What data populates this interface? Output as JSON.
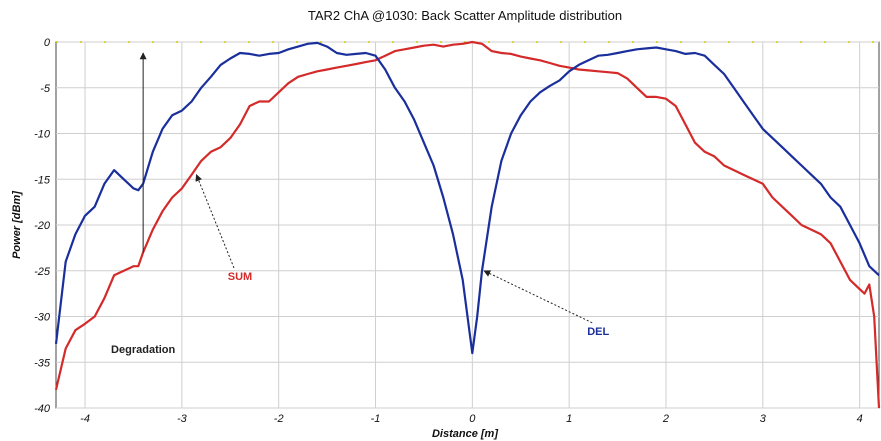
{
  "chart_data": {
    "type": "line",
    "title": "TAR2 ChA @1030: Back Scatter Amplitude distribution",
    "xlabel": "Distance [m]",
    "ylabel": "Power [dBm]",
    "xlim": [
      -4.3,
      4.2
    ],
    "ylim": [
      -40,
      0
    ],
    "xticks": [
      -4,
      -3,
      -2,
      -1,
      0,
      1,
      2,
      3,
      4
    ],
    "yticks": [
      0,
      -5,
      -10,
      -15,
      -20,
      -25,
      -30,
      -35,
      -40
    ],
    "grid": true,
    "colors": {
      "SUM": "#d42a2a",
      "DEL": "#1a2f9c",
      "arrow": "#222222",
      "dashed": "#c8c800"
    },
    "series": [
      {
        "name": "SUM",
        "x": [
          -4.3,
          -4.2,
          -4.1,
          -4.0,
          -3.9,
          -3.8,
          -3.7,
          -3.6,
          -3.5,
          -3.45,
          -3.4,
          -3.3,
          -3.2,
          -3.1,
          -3.0,
          -2.9,
          -2.8,
          -2.7,
          -2.6,
          -2.5,
          -2.4,
          -2.3,
          -2.2,
          -2.1,
          -2.0,
          -1.9,
          -1.8,
          -1.7,
          -1.6,
          -1.5,
          -1.4,
          -1.3,
          -1.2,
          -1.1,
          -1.0,
          -0.9,
          -0.8,
          -0.7,
          -0.6,
          -0.5,
          -0.4,
          -0.3,
          -0.2,
          -0.1,
          0.0,
          0.1,
          0.2,
          0.3,
          0.4,
          0.5,
          0.6,
          0.7,
          0.8,
          0.9,
          1.0,
          1.1,
          1.2,
          1.3,
          1.4,
          1.5,
          1.6,
          1.7,
          1.8,
          1.9,
          2.0,
          2.1,
          2.2,
          2.3,
          2.4,
          2.5,
          2.6,
          2.7,
          2.8,
          2.9,
          3.0,
          3.1,
          3.2,
          3.3,
          3.4,
          3.5,
          3.6,
          3.7,
          3.8,
          3.9,
          4.0,
          4.05,
          4.1,
          4.15,
          4.2
        ],
        "y": [
          -38,
          -33.5,
          -31.5,
          -30.8,
          -30,
          -28,
          -25.5,
          -25,
          -24.5,
          -24.5,
          -23,
          -20.5,
          -18.5,
          -17,
          -16,
          -14.5,
          -13,
          -12,
          -11.5,
          -10.5,
          -9,
          -7,
          -6.5,
          -6.5,
          -5.5,
          -4.5,
          -3.8,
          -3.5,
          -3.2,
          -3,
          -2.8,
          -2.6,
          -2.4,
          -2.2,
          -2,
          -1.5,
          -1,
          -0.8,
          -0.6,
          -0.4,
          -0.3,
          -0.5,
          -0.3,
          -0.2,
          0,
          -0.2,
          -1,
          -1.2,
          -1.3,
          -1.6,
          -1.8,
          -2,
          -2.3,
          -2.6,
          -2.8,
          -3,
          -3.1,
          -3.2,
          -3.3,
          -3.4,
          -4,
          -5,
          -6,
          -6,
          -6.2,
          -7,
          -9,
          -11,
          -12,
          -12.5,
          -13.5,
          -14,
          -14.5,
          -15,
          -15.5,
          -17,
          -18,
          -19,
          -20,
          -20.5,
          -21,
          -22,
          -24,
          -26,
          -27,
          -27.5,
          -26.5,
          -30,
          -40
        ]
      },
      {
        "name": "DEL",
        "x": [
          -4.3,
          -4.2,
          -4.1,
          -4.0,
          -3.9,
          -3.8,
          -3.7,
          -3.6,
          -3.5,
          -3.45,
          -3.4,
          -3.3,
          -3.2,
          -3.1,
          -3.0,
          -2.9,
          -2.8,
          -2.7,
          -2.6,
          -2.5,
          -2.4,
          -2.3,
          -2.2,
          -2.1,
          -2.0,
          -1.9,
          -1.8,
          -1.7,
          -1.6,
          -1.5,
          -1.4,
          -1.3,
          -1.2,
          -1.1,
          -1.0,
          -0.9,
          -0.8,
          -0.7,
          -0.6,
          -0.5,
          -0.4,
          -0.3,
          -0.2,
          -0.1,
          -0.05,
          0.0,
          0.05,
          0.1,
          0.2,
          0.3,
          0.4,
          0.5,
          0.6,
          0.7,
          0.8,
          0.9,
          1.0,
          1.1,
          1.2,
          1.3,
          1.4,
          1.5,
          1.6,
          1.7,
          1.8,
          1.9,
          2.0,
          2.1,
          2.2,
          2.3,
          2.4,
          2.5,
          2.6,
          2.7,
          2.8,
          2.9,
          3.0,
          3.1,
          3.2,
          3.3,
          3.4,
          3.5,
          3.6,
          3.7,
          3.8,
          3.9,
          4.0,
          4.1,
          4.2
        ],
        "y": [
          -33,
          -24,
          -21,
          -19,
          -18,
          -15.5,
          -14,
          -15,
          -16,
          -16.2,
          -15.5,
          -12,
          -9.5,
          -8,
          -7.5,
          -6.5,
          -5,
          -3.8,
          -2.5,
          -1.8,
          -1.2,
          -1.3,
          -1.5,
          -1.3,
          -1.2,
          -0.8,
          -0.5,
          -0.2,
          -0.1,
          -0.5,
          -1.2,
          -1.4,
          -1.3,
          -1.2,
          -1.5,
          -3,
          -5,
          -6.5,
          -8.5,
          -11,
          -13.5,
          -17,
          -21,
          -26,
          -30,
          -34,
          -30,
          -25,
          -18,
          -13,
          -10,
          -8,
          -6.5,
          -5.5,
          -4.8,
          -4.2,
          -3.2,
          -2.5,
          -2,
          -1.5,
          -1.4,
          -1.2,
          -1,
          -0.8,
          -0.7,
          -0.6,
          -0.8,
          -1,
          -1.3,
          -1.2,
          -1.5,
          -2.5,
          -3.5,
          -5,
          -6.5,
          -8,
          -9.5,
          -10.5,
          -11.5,
          -12.5,
          -13.5,
          -14.5,
          -15.5,
          -17,
          -18,
          -20,
          -22,
          -24.5,
          -25.5
        ]
      }
    ],
    "annotations": [
      {
        "text": "SUM",
        "color": "#d42a2a",
        "label_at": [
          -2.4,
          -26
        ],
        "arrow_to": [
          -2.85,
          -14.5
        ]
      },
      {
        "text": "DEL",
        "color": "#1a2f9c",
        "label_at": [
          1.3,
          -32
        ],
        "arrow_to": [
          0.12,
          -25
        ]
      },
      {
        "text": "Degradation",
        "color": "#222222",
        "label_at": [
          -3.4,
          -34
        ],
        "arrow_from": [
          -3.4,
          -23
        ],
        "arrow_to": [
          -3.4,
          -1.2
        ]
      }
    ],
    "reference_line": {
      "y": 0,
      "style": "dashed"
    }
  }
}
